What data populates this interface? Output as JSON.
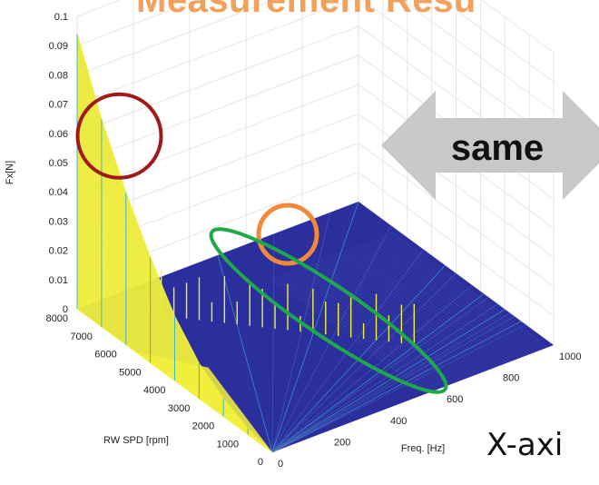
{
  "slide": {
    "title": "Measurement Resu",
    "x_axis_caption": "X-axi",
    "arrow_text": "same"
  },
  "colors": {
    "title": "#f2a05a",
    "surface_base": "#2b2f9e",
    "surface_peak": "#f2f03c",
    "mid": "#3fb7c8",
    "arrow": "#c8c8c8",
    "circle_red": "#a11a1a",
    "circle_orange": "#f08a3a",
    "ellipse_green": "#1fa84a"
  },
  "chart_data": {
    "type": "surface",
    "zlabel": "Fx[N]",
    "xlabel": "Freq. [Hz]",
    "ylabel": "RW SPD [rpm]",
    "z_ticks": [
      "0",
      "0.01",
      "0.02",
      "0.03",
      "0.04",
      "0.05",
      "0.06",
      "0.07",
      "0.08",
      "0.09",
      "0.1"
    ],
    "freq_ticks": [
      "0",
      "200",
      "400",
      "600",
      "800",
      "1000"
    ],
    "speed_ticks": [
      "0",
      "1000",
      "2000",
      "3000",
      "4000",
      "5000",
      "6000",
      "7000",
      "8000"
    ],
    "zlim": [
      0,
      0.1
    ],
    "freq_lim": [
      0,
      1000
    ],
    "speed_lim": [
      0,
      8000
    ],
    "grid": true,
    "peak_ridge": {
      "freq_hz": 0,
      "speed_rpm": [
        0,
        1000,
        2000,
        3000,
        4000,
        5000,
        6000,
        7000,
        8000
      ],
      "fx_n": [
        0.0,
        0.002,
        0.006,
        0.012,
        0.022,
        0.036,
        0.052,
        0.071,
        0.094
      ]
    },
    "annotations": [
      {
        "shape": "circle",
        "color": "red",
        "target": "low-frequency ridge near 8000 rpm"
      },
      {
        "shape": "circle",
        "color": "orange",
        "target": "peak near 400 Hz, high speed"
      },
      {
        "shape": "ellipse",
        "color": "green",
        "target": "harmonic peaks along diagonal"
      }
    ]
  }
}
